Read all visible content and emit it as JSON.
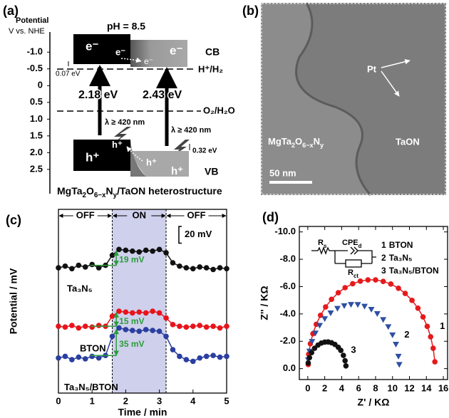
{
  "panel_a": {
    "label": "(a)",
    "axis_title": [
      "Potential",
      "V vs. NHE"
    ],
    "ylim": [
      -1.6,
      2.8
    ],
    "yticks": [
      {
        "value": -1,
        "label": "-1.0"
      },
      {
        "value": -0.5,
        "label": "-0.5"
      },
      0,
      0.5,
      {
        "value": 1,
        "label": "1.0"
      },
      1.5,
      {
        "value": 2,
        "label": "2.0"
      },
      2.5
    ],
    "ph": "pH = 8.5",
    "electron": "e⁻",
    "hole": "h⁺",
    "cb": "CB",
    "vb": "VB",
    "h2_level": "H⁺/H₂",
    "o2_level": "O₂/H₂O",
    "cb_offset": "0.07 eV",
    "vb_offset": "0.32 eV",
    "gap_left": "2.18 eV",
    "gap_right": "2.43 eV",
    "light": "λ ≥ 420 nm",
    "caption": [
      "MgTa",
      "2",
      "O",
      "6−x",
      "N",
      "y",
      "/TaON heterostructure"
    ]
  },
  "panel_b": {
    "label": "(b)",
    "pt": "Pt",
    "left_phase": [
      "MgTa",
      "2",
      "O",
      "6−x",
      "N",
      "y"
    ],
    "right_phase": "TaON",
    "scale": "50 nm"
  },
  "chart_data": [
    {
      "type": "line",
      "panel_label": "(c)",
      "xlabel": "Time / min",
      "ylabel": "Potential / mV",
      "xlim": [
        0,
        5
      ],
      "xticks": [
        0,
        1,
        2,
        3,
        4,
        5
      ],
      "ylim": [
        0,
        220
      ],
      "states": [
        "OFF",
        "ON",
        "OFF"
      ],
      "on_span": [
        1.6,
        3.2
      ],
      "scale_bar": {
        "value": 20,
        "label": "20 mV"
      },
      "jump_labels": [
        "19 mV",
        "15 mV",
        "35 mV"
      ],
      "x": [
        0,
        0.2,
        0.4,
        0.6,
        0.8,
        1.0,
        1.2,
        1.4,
        1.6,
        1.8,
        2.0,
        2.2,
        2.4,
        2.6,
        2.8,
        3.0,
        3.2,
        3.4,
        3.6,
        3.8,
        4.0,
        4.2,
        4.4,
        4.6,
        4.8,
        5.0
      ],
      "series": [
        {
          "name": "Ta₃N₅",
          "color": "#111111",
          "values": [
            150,
            152,
            149,
            153,
            151,
            154,
            150,
            153,
            165,
            172,
            171,
            170,
            169,
            171,
            170,
            172,
            168,
            156,
            152,
            150,
            149,
            151,
            150,
            148,
            150,
            149
          ]
        },
        {
          "name": "BTON",
          "color": "#e8141b",
          "values": [
            80,
            79,
            81,
            78,
            80,
            79,
            81,
            80,
            92,
            98,
            97,
            96,
            97,
            96,
            98,
            96,
            90,
            82,
            80,
            79,
            80,
            81,
            79,
            80,
            78,
            80
          ]
        },
        {
          "name": "Ta₃N₅/BTON",
          "color": "#2b3fa0",
          "values": [
            42,
            44,
            40,
            43,
            41,
            44,
            42,
            45,
            68,
            78,
            76,
            75,
            74,
            76,
            75,
            74,
            68,
            52,
            44,
            40,
            38,
            42,
            44,
            45,
            43,
            44
          ]
        }
      ]
    },
    {
      "type": "scatter",
      "panel_label": "(d)",
      "xlabel": "Z' / KΩ",
      "ylabel": "Z'' / KΩ",
      "xlim": [
        -1,
        16.5
      ],
      "xticks": [
        0,
        2,
        4,
        6,
        8,
        10,
        12,
        14,
        16
      ],
      "ylim": [
        -10.4,
        0.8
      ],
      "y_inverted": true,
      "yticks": [
        {
          "value": -10,
          "label": "-10.0"
        },
        {
          "value": -8,
          "label": "-8.0"
        },
        {
          "value": -6,
          "label": "-6.0"
        },
        {
          "value": -4,
          "label": "-4.0"
        },
        {
          "value": -2,
          "label": "-2.0"
        },
        {
          "value": 0,
          "label": "0.0"
        }
      ],
      "circuit": [
        [
          "R",
          "s"
        ],
        [
          "CPE",
          "d"
        ],
        [
          "R",
          "ct"
        ]
      ],
      "series": [
        {
          "label": "1",
          "name": "BTON",
          "color": "#e41a1c",
          "marker": "circle",
          "fit_line": true,
          "x": [
            0.05,
            0.1,
            0.3,
            0.6,
            1.0,
            1.5,
            2.1,
            2.8,
            3.6,
            4.4,
            5.3,
            6.2,
            7.1,
            8.0,
            8.9,
            9.8,
            10.7,
            11.5,
            12.3,
            13.0,
            13.6,
            14.1,
            14.5,
            14.8,
            15.0
          ],
          "values": [
            -0.3,
            -1.05,
            -1.82,
            -2.55,
            -3.24,
            -3.9,
            -4.51,
            -5.07,
            -5.55,
            -5.92,
            -6.21,
            -6.4,
            -6.49,
            -6.49,
            -6.38,
            -6.19,
            -5.88,
            -5.5,
            -4.99,
            -4.42,
            -3.78,
            -3.09,
            -2.33,
            -1.49,
            -0.5
          ]
        },
        {
          "label": "2",
          "name": "Ta₃N₅",
          "color": "#2e4fa3",
          "marker": "triangle",
          "fit_line": false,
          "x": [
            0.05,
            0.2,
            0.5,
            0.9,
            1.4,
            2.0,
            2.7,
            3.5,
            4.3,
            5.1,
            5.9,
            6.7,
            7.5,
            8.2,
            8.9,
            9.5,
            10.0,
            10.4,
            10.7,
            10.8
          ],
          "values": [
            -0.64,
            -1.27,
            -1.98,
            -2.6,
            -3.16,
            -3.65,
            -4.07,
            -4.4,
            -4.6,
            -4.69,
            -4.68,
            -4.56,
            -4.33,
            -4.02,
            -3.58,
            -3.06,
            -2.46,
            -1.78,
            -0.9,
            -0.3
          ]
        },
        {
          "label": "3",
          "name": "Ta₃N₅/BTON",
          "color": "#111111",
          "marker": "circle",
          "fit_line": false,
          "x": [
            0.05,
            0.2,
            0.45,
            0.8,
            1.2,
            1.6,
            2.0,
            2.4,
            2.8,
            3.2,
            3.6,
            3.9,
            4.2,
            4.4,
            4.5
          ],
          "values": [
            -0.41,
            -0.8,
            -1.17,
            -1.49,
            -1.72,
            -1.87,
            -1.94,
            -1.95,
            -1.89,
            -1.77,
            -1.56,
            -1.33,
            -0.97,
            -0.58,
            -0.2
          ]
        }
      ]
    }
  ]
}
